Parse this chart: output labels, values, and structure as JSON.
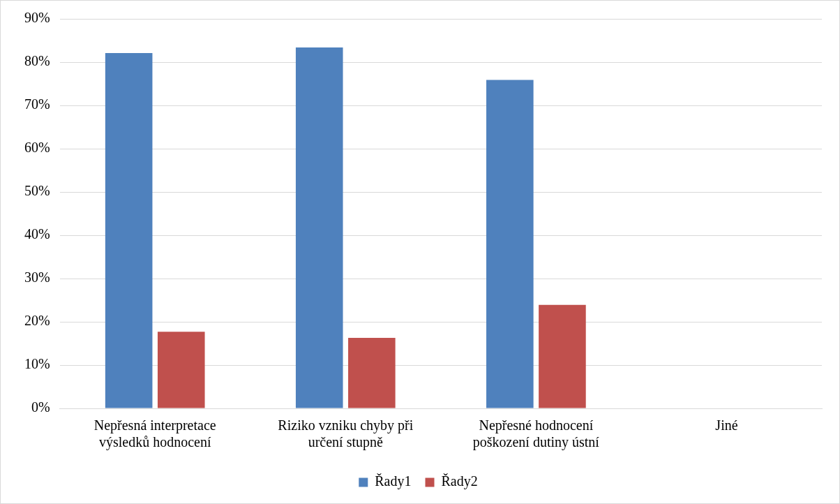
{
  "chart_data": {
    "type": "bar",
    "categories": [
      "Nepřesná interpretace výsledků hodnocení",
      "Riziko vzniku chyby při určení stupně",
      "Nepřesné hodnocení poškození dutiny ústní",
      "Jiné"
    ],
    "series": [
      {
        "name": "Řady1",
        "color": "#4f81bd",
        "values": [
          82.1,
          83.4,
          75.9,
          0
        ]
      },
      {
        "name": "Řady2",
        "color": "#c0504d",
        "values": [
          17.7,
          16.3,
          23.9,
          0
        ]
      }
    ],
    "ylim": [
      0,
      90
    ],
    "yticks": [
      {
        "value": 0,
        "label": "0%"
      },
      {
        "value": 10,
        "label": "10%"
      },
      {
        "value": 20,
        "label": "20%"
      },
      {
        "value": 30,
        "label": "30%"
      },
      {
        "value": 40,
        "label": "40%"
      },
      {
        "value": 50,
        "label": "50%"
      },
      {
        "value": 60,
        "label": "60%"
      },
      {
        "value": 70,
        "label": "70%"
      },
      {
        "value": 80,
        "label": "80%"
      },
      {
        "value": 90,
        "label": "90%"
      }
    ],
    "grid": "y",
    "legend": "bottom"
  }
}
